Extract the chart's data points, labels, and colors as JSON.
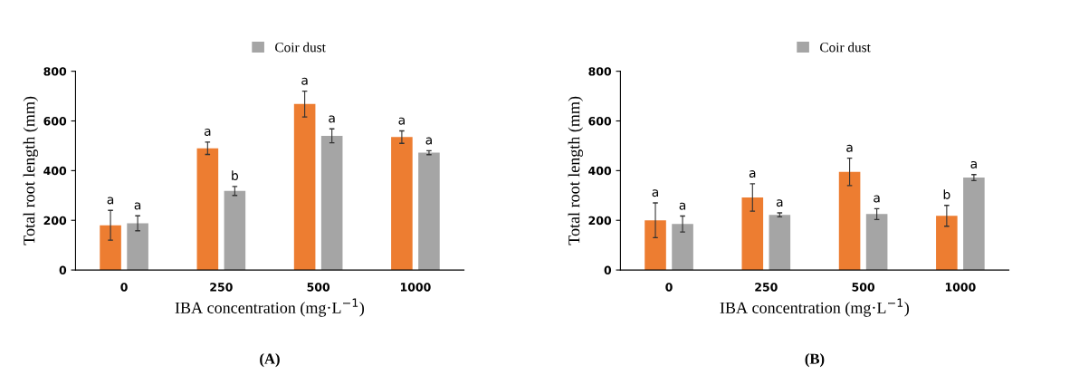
{
  "chart_data": [
    {
      "type": "bar",
      "xlabel": "IBA concentration (mg·L$^{−1}$)",
      "ylabel": "Total root length (mm)",
      "categories": [
        "0",
        "250",
        "500",
        "1000"
      ],
      "ylim": [
        0,
        800
      ],
      "yticks": [
        0,
        200,
        400,
        600,
        800
      ],
      "legend": "top",
      "grid": false,
      "series": [
        {
          "color": "#ed7d31",
          "values": [
            180,
            490,
            668,
            535
          ],
          "errors": [
            60,
            25,
            52,
            25
          ]
        },
        {
          "name": "Coir dust",
          "color": "#a5a5a5",
          "values": [
            188,
            318,
            540,
            472
          ],
          "errors": [
            30,
            18,
            28,
            8
          ]
        }
      ],
      "annotations": [
        {
          "text": "a",
          "x": "0",
          "y": 180
        },
        {
          "text": "a",
          "x": "0",
          "y": 188
        },
        {
          "text": "a",
          "x": "250",
          "y": 490
        },
        {
          "text": "b",
          "x": "250",
          "y": 318
        },
        {
          "text": "a",
          "x": "500",
          "y": 668
        },
        {
          "text": "a",
          "x": "500",
          "y": 540
        },
        {
          "text": "a",
          "x": "1000",
          "y": 535
        },
        {
          "text": "a",
          "x": "1000",
          "y": 472
        },
        "(A)"
      ]
    },
    {
      "type": "bar",
      "xlabel": "IBA concentration (mg·L$^{−1}$)",
      "ylabel": "Total root length (mm)",
      "categories": [
        "0",
        "250",
        "500",
        "1000"
      ],
      "ylim": [
        0,
        800
      ],
      "yticks": [
        0,
        200,
        400,
        600,
        800
      ],
      "legend": "top",
      "grid": false,
      "series": [
        {
          "color": "#ed7d31",
          "values": [
            200,
            292,
            395,
            218
          ],
          "errors": [
            70,
            55,
            55,
            42
          ]
        },
        {
          "name": "Coir dust",
          "color": "#a5a5a5",
          "values": [
            185,
            222,
            225,
            372
          ],
          "errors": [
            32,
            8,
            22,
            12
          ]
        }
      ],
      "annotations": [
        {
          "text": "a",
          "x": "0",
          "y": 200
        },
        {
          "text": "a",
          "x": "0",
          "y": 185
        },
        {
          "text": "a",
          "x": "250",
          "y": 292
        },
        {
          "text": "a",
          "x": "250",
          "y": 222
        },
        {
          "text": "a",
          "x": "500",
          "y": 395
        },
        {
          "text": "a",
          "x": "500",
          "y": 225
        },
        {
          "text": "b",
          "x": "1000",
          "y": 218
        },
        {
          "text": "a",
          "x": "1000",
          "y": 372
        },
        "(B)"
      ]
    }
  ]
}
